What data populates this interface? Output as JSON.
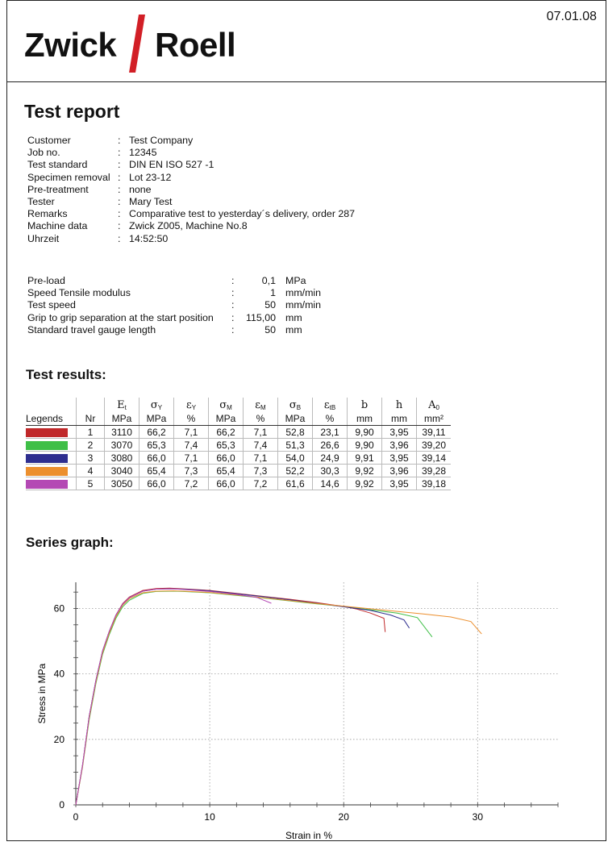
{
  "header": {
    "logo_part1": "Zwick",
    "logo_part2": "Roell",
    "date": "07.01.08"
  },
  "colors": {
    "logo_slash": "#d21f26"
  },
  "title": "Test report",
  "info": [
    {
      "key": "Customer",
      "value": "Test Company"
    },
    {
      "key": "Job no.",
      "value": "12345"
    },
    {
      "key": "Test standard",
      "value": "DIN EN ISO 527 -1"
    },
    {
      "key": "Specimen removal",
      "value": "Lot 23-12"
    },
    {
      "key": "Pre-treatment",
      "value": "none"
    },
    {
      "key": "Tester",
      "value": "Mary Test"
    },
    {
      "key": "Remarks",
      "value": "Comparative test to yesterday´s delivery, order 287"
    },
    {
      "key": "Machine data",
      "value": "Zwick Z005, Machine No.8"
    },
    {
      "key": "Uhrzeit",
      "value": "14:52:50"
    }
  ],
  "parameters": [
    {
      "key": "Pre-load",
      "value": "0,1",
      "unit": "MPa"
    },
    {
      "key": "Speed Tensile modulus",
      "value": "1",
      "unit": "mm/min"
    },
    {
      "key": "Test speed",
      "value": "50",
      "unit": "mm/min"
    },
    {
      "key": "Grip to grip separation at the start position",
      "value": "115,00",
      "unit": "mm"
    },
    {
      "key": "Standard travel gauge length",
      "value": "50",
      "unit": "mm"
    }
  ],
  "results_heading": "Test results:",
  "results": {
    "header_symbols": [
      {
        "main": "E",
        "sub": "t"
      },
      {
        "main": "σ",
        "sub": "Y"
      },
      {
        "main": "ε",
        "sub": "Y"
      },
      {
        "main": "σ",
        "sub": "M"
      },
      {
        "main": "ε",
        "sub": "M"
      },
      {
        "main": "σ",
        "sub": "B"
      },
      {
        "main": "ε",
        "sub": "tB"
      },
      {
        "main": "b",
        "sub": ""
      },
      {
        "main": "h",
        "sub": ""
      },
      {
        "main": "A",
        "sub": "0"
      }
    ],
    "legends_label": "Legends",
    "nr_label": "Nr",
    "units": [
      "MPa",
      "MPa",
      "%",
      "MPa",
      "%",
      "MPa",
      "%",
      "mm",
      "mm",
      "mm²"
    ],
    "rows": [
      {
        "nr": "1",
        "color": "#c0282a",
        "values": [
          "3110",
          "66,2",
          "7,1",
          "66,2",
          "7,1",
          "52,8",
          "23,1",
          "9,90",
          "3,95",
          "39,11"
        ]
      },
      {
        "nr": "2",
        "color": "#3fbf47",
        "values": [
          "3070",
          "65,3",
          "7,4",
          "65,3",
          "7,4",
          "51,3",
          "26,6",
          "9,90",
          "3,96",
          "39,20"
        ]
      },
      {
        "nr": "3",
        "color": "#2e2e8f",
        "values": [
          "3080",
          "66,0",
          "7,1",
          "66,0",
          "7,1",
          "54,0",
          "24,9",
          "9,91",
          "3,95",
          "39,14"
        ]
      },
      {
        "nr": "4",
        "color": "#ec8f2e",
        "values": [
          "3040",
          "65,4",
          "7,3",
          "65,4",
          "7,3",
          "52,2",
          "30,3",
          "9,92",
          "3,96",
          "39,28"
        ]
      },
      {
        "nr": "5",
        "color": "#b449b4",
        "values": [
          "3050",
          "66,0",
          "7,2",
          "66,0",
          "7,2",
          "61,6",
          "14,6",
          "9,92",
          "3,95",
          "39,18"
        ]
      }
    ]
  },
  "graph_heading": "Series graph:",
  "chart_data": {
    "type": "line",
    "xlabel": "Strain in %",
    "ylabel": "Stress in MPa",
    "xlim": [
      0,
      36
    ],
    "ylim": [
      0,
      68
    ],
    "xticks": [
      0,
      10,
      20,
      30
    ],
    "yticks": [
      0,
      20,
      40,
      60
    ],
    "grid": true,
    "series": [
      {
        "color": "#c0282a",
        "points": [
          [
            0,
            0
          ],
          [
            0.5,
            12
          ],
          [
            1,
            27
          ],
          [
            1.5,
            38
          ],
          [
            2,
            47
          ],
          [
            2.5,
            53
          ],
          [
            3,
            58
          ],
          [
            3.5,
            61.5
          ],
          [
            4,
            63.5
          ],
          [
            5,
            65.5
          ],
          [
            6,
            66.1
          ],
          [
            7,
            66.2
          ],
          [
            8,
            66
          ],
          [
            10,
            65.5
          ],
          [
            12,
            64.6
          ],
          [
            14,
            63.7
          ],
          [
            16,
            62.8
          ],
          [
            18,
            61.8
          ],
          [
            20,
            60.6
          ],
          [
            21,
            59.8
          ],
          [
            22,
            58.6
          ],
          [
            23,
            57
          ],
          [
            23.1,
            52.8
          ]
        ]
      },
      {
        "color": "#3fbf47",
        "points": [
          [
            0,
            0
          ],
          [
            0.5,
            11.5
          ],
          [
            1,
            26
          ],
          [
            1.5,
            37
          ],
          [
            2,
            46
          ],
          [
            2.5,
            52
          ],
          [
            3,
            57
          ],
          [
            3.5,
            60.5
          ],
          [
            4,
            62.5
          ],
          [
            5,
            64.6
          ],
          [
            6,
            65.2
          ],
          [
            7.4,
            65.3
          ],
          [
            8,
            65.2
          ],
          [
            10,
            64.8
          ],
          [
            12,
            64
          ],
          [
            14,
            63.2
          ],
          [
            16,
            62.3
          ],
          [
            18,
            61.4
          ],
          [
            20,
            60.6
          ],
          [
            22,
            59.6
          ],
          [
            24,
            58.6
          ],
          [
            25.5,
            57.2
          ],
          [
            26.6,
            51.3
          ]
        ]
      },
      {
        "color": "#2e2e8f",
        "points": [
          [
            0,
            0
          ],
          [
            0.5,
            12
          ],
          [
            1,
            27
          ],
          [
            1.5,
            38
          ],
          [
            2,
            47
          ],
          [
            2.5,
            53
          ],
          [
            3,
            58
          ],
          [
            3.5,
            61.3
          ],
          [
            4,
            63.3
          ],
          [
            5,
            65.3
          ],
          [
            6,
            65.9
          ],
          [
            7.1,
            66
          ],
          [
            8,
            65.9
          ],
          [
            10,
            65.4
          ],
          [
            12,
            64.5
          ],
          [
            14,
            63.6
          ],
          [
            16,
            62.6
          ],
          [
            18,
            61.6
          ],
          [
            20,
            60.5
          ],
          [
            22,
            59.4
          ],
          [
            23.5,
            58
          ],
          [
            24.5,
            56.5
          ],
          [
            24.9,
            54
          ]
        ]
      },
      {
        "color": "#ec8f2e",
        "points": [
          [
            0,
            0
          ],
          [
            0.5,
            11.6
          ],
          [
            1,
            26.5
          ],
          [
            1.5,
            37.5
          ],
          [
            2,
            46.5
          ],
          [
            2.5,
            52.5
          ],
          [
            3,
            57.5
          ],
          [
            3.5,
            61
          ],
          [
            4,
            63
          ],
          [
            5,
            64.8
          ],
          [
            6,
            65.3
          ],
          [
            7.3,
            65.4
          ],
          [
            8,
            65.3
          ],
          [
            10,
            64.9
          ],
          [
            12,
            64.1
          ],
          [
            14,
            63.3
          ],
          [
            16,
            62.4
          ],
          [
            18,
            61.5
          ],
          [
            20,
            60.7
          ],
          [
            22,
            59.9
          ],
          [
            24,
            59.1
          ],
          [
            26,
            58.3
          ],
          [
            28,
            57.4
          ],
          [
            29.5,
            56
          ],
          [
            30.3,
            52.2
          ]
        ]
      },
      {
        "color": "#b449b4",
        "points": [
          [
            0,
            0
          ],
          [
            0.5,
            12
          ],
          [
            1,
            27
          ],
          [
            1.5,
            38
          ],
          [
            2,
            47
          ],
          [
            2.5,
            53
          ],
          [
            3,
            58
          ],
          [
            3.5,
            61.3
          ],
          [
            4,
            63.3
          ],
          [
            5,
            65.3
          ],
          [
            6,
            65.9
          ],
          [
            7.2,
            66
          ],
          [
            8,
            65.8
          ],
          [
            10,
            65.2
          ],
          [
            12,
            64.3
          ],
          [
            13.5,
            63.4
          ],
          [
            14.6,
            61.6
          ]
        ]
      }
    ]
  }
}
